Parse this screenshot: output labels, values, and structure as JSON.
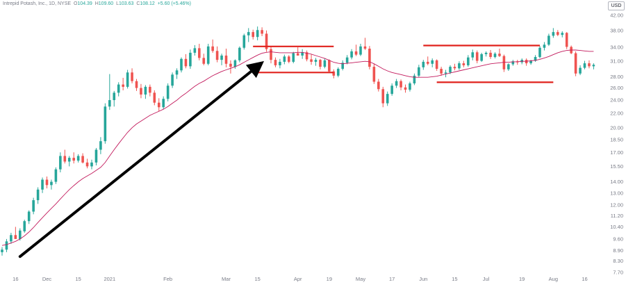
{
  "header": {
    "symbol": "Intrepid Potash, Inc., 1D, NYSE",
    "o_label": "O",
    "o_value": "104.39",
    "h_label": "H",
    "h_value": "109.60",
    "l_label": "L",
    "l_value": "103.63",
    "c_label": "C",
    "c_value": "108.12",
    "change": "+5.60 (+5.46%)",
    "currency": "USD"
  },
  "colors": {
    "up": "#26a69a",
    "down": "#ef5350",
    "ma": "#c2185b",
    "levels": "#e0201b",
    "arrow": "#000000",
    "axis_text": "#787b86"
  },
  "chart_data": {
    "type": "candlestick",
    "price_scale": "log",
    "y_ticks": [
      7.7,
      8.3,
      8.9,
      9.6,
      10.4,
      11.2,
      12.0,
      13.0,
      14.0,
      15.5,
      17.0,
      18.5,
      20.0,
      22.0,
      24.0,
      26.0,
      28.0,
      31.0,
      34.0,
      38.0,
      42.0
    ],
    "y_tick_labels": [
      "7.70",
      "8.30",
      "8.90",
      "9.60",
      "10.40",
      "11.20",
      "12.00",
      "13.00",
      "14.00",
      "15.50",
      "17.00",
      "18.50",
      "20.00",
      "22.00",
      "24.00",
      "26.00",
      "28.00",
      "31.00",
      "34.00",
      "38.00",
      "42.00"
    ],
    "x_labels": [
      {
        "i": 3,
        "label": "16"
      },
      {
        "i": 10,
        "label": "Dec"
      },
      {
        "i": 17,
        "label": "15"
      },
      {
        "i": 24,
        "label": "2021"
      },
      {
        "i": 37,
        "label": "Feb"
      },
      {
        "i": 50,
        "label": "Mar"
      },
      {
        "i": 57,
        "label": "15"
      },
      {
        "i": 66,
        "label": "Apr"
      },
      {
        "i": 73,
        "label": "19"
      },
      {
        "i": 80,
        "label": "May"
      },
      {
        "i": 87,
        "label": "17"
      },
      {
        "i": 94,
        "label": "Jun"
      },
      {
        "i": 101,
        "label": "15"
      },
      {
        "i": 108,
        "label": "Jul"
      },
      {
        "i": 116,
        "label": "19"
      },
      {
        "i": 123,
        "label": "Aug"
      },
      {
        "i": 130,
        "label": "16"
      }
    ],
    "ohlc": [
      [
        8.8,
        9.1,
        8.6,
        8.95
      ],
      [
        8.95,
        9.6,
        8.8,
        9.45
      ],
      [
        9.45,
        10.0,
        9.3,
        9.85
      ],
      [
        9.85,
        10.4,
        9.6,
        9.6
      ],
      [
        9.6,
        10.3,
        9.5,
        10.15
      ],
      [
        10.1,
        10.9,
        10.0,
        10.8
      ],
      [
        10.8,
        11.6,
        10.6,
        11.5
      ],
      [
        11.5,
        12.6,
        11.3,
        12.4
      ],
      [
        12.4,
        13.5,
        12.1,
        13.3
      ],
      [
        13.3,
        14.4,
        13.0,
        14.2
      ],
      [
        14.2,
        14.5,
        13.4,
        13.7
      ],
      [
        13.7,
        14.2,
        13.3,
        14.0
      ],
      [
        14.0,
        15.4,
        13.8,
        15.2
      ],
      [
        15.2,
        17.0,
        14.9,
        16.6
      ],
      [
        16.6,
        17.3,
        15.8,
        16.0
      ],
      [
        16.0,
        16.6,
        15.5,
        16.4
      ],
      [
        16.4,
        17.0,
        15.8,
        16.1
      ],
      [
        16.1,
        16.8,
        15.9,
        16.6
      ],
      [
        16.6,
        16.9,
        15.8,
        15.9
      ],
      [
        15.9,
        16.3,
        15.3,
        15.5
      ],
      [
        15.5,
        16.2,
        15.2,
        15.9
      ],
      [
        15.9,
        17.5,
        15.6,
        17.3
      ],
      [
        17.3,
        18.8,
        16.8,
        18.3
      ],
      [
        18.3,
        23.5,
        18.0,
        23.0
      ],
      [
        23.0,
        28.5,
        22.5,
        24.0
      ],
      [
        24.0,
        25.5,
        23.0,
        25.2
      ],
      [
        25.2,
        27.0,
        24.6,
        26.6
      ],
      [
        26.6,
        27.8,
        25.6,
        26.2
      ],
      [
        26.2,
        29.3,
        25.9,
        28.8
      ],
      [
        28.8,
        29.6,
        26.8,
        27.2
      ],
      [
        27.2,
        27.6,
        25.5,
        26.0
      ],
      [
        26.0,
        26.7,
        24.3,
        24.9
      ],
      [
        24.9,
        26.5,
        24.2,
        26.2
      ],
      [
        26.2,
        26.6,
        24.6,
        25.2
      ],
      [
        25.2,
        25.6,
        23.2,
        23.6
      ],
      [
        23.6,
        24.3,
        22.3,
        22.9
      ],
      [
        22.9,
        24.6,
        22.6,
        24.2
      ],
      [
        24.2,
        26.8,
        23.8,
        26.4
      ],
      [
        26.4,
        28.8,
        26.0,
        28.4
      ],
      [
        28.4,
        29.6,
        27.6,
        29.2
      ],
      [
        29.2,
        31.8,
        28.8,
        31.5
      ],
      [
        31.5,
        32.5,
        29.6,
        30.0
      ],
      [
        30.0,
        33.5,
        29.5,
        32.8
      ],
      [
        32.8,
        34.5,
        32.2,
        33.8
      ],
      [
        33.8,
        34.8,
        31.2,
        31.7
      ],
      [
        31.7,
        32.6,
        30.2,
        30.5
      ],
      [
        30.5,
        34.8,
        30.2,
        34.2
      ],
      [
        34.2,
        35.8,
        32.8,
        33.2
      ],
      [
        33.2,
        34.2,
        30.8,
        31.3
      ],
      [
        31.3,
        32.6,
        30.2,
        32.2
      ],
      [
        32.2,
        33.7,
        29.8,
        30.5
      ],
      [
        30.5,
        31.2,
        28.6,
        29.9
      ],
      [
        29.9,
        31.4,
        29.5,
        31.2
      ],
      [
        31.2,
        34.2,
        30.8,
        33.9
      ],
      [
        33.9,
        37.2,
        33.5,
        36.8
      ],
      [
        36.8,
        38.6,
        35.2,
        37.6
      ],
      [
        37.6,
        38.2,
        35.8,
        36.4
      ],
      [
        36.4,
        39.0,
        35.6,
        38.1
      ],
      [
        38.1,
        38.8,
        36.6,
        37.2
      ],
      [
        37.2,
        38.0,
        33.0,
        33.6
      ],
      [
        33.6,
        34.2,
        30.6,
        31.3
      ],
      [
        31.3,
        31.8,
        29.8,
        30.2
      ],
      [
        30.2,
        31.5,
        29.6,
        30.9
      ],
      [
        30.9,
        32.4,
        30.4,
        32.0
      ],
      [
        32.0,
        32.3,
        30.6,
        30.9
      ],
      [
        30.9,
        33.0,
        30.6,
        32.7
      ],
      [
        32.7,
        34.0,
        32.2,
        32.2
      ],
      [
        32.2,
        33.6,
        31.5,
        32.9
      ],
      [
        32.9,
        33.3,
        31.0,
        31.4
      ],
      [
        31.4,
        32.4,
        30.3,
        30.9
      ],
      [
        30.9,
        31.7,
        30.1,
        31.3
      ],
      [
        31.3,
        31.5,
        29.4,
        29.9
      ],
      [
        29.9,
        31.6,
        29.6,
        31.2
      ],
      [
        31.2,
        31.4,
        28.7,
        29.0
      ],
      [
        29.0,
        29.4,
        27.7,
        28.2
      ],
      [
        28.2,
        29.8,
        27.9,
        29.5
      ],
      [
        29.5,
        31.2,
        29.2,
        30.7
      ],
      [
        30.7,
        32.3,
        30.4,
        31.8
      ],
      [
        31.8,
        33.6,
        31.4,
        33.1
      ],
      [
        33.1,
        34.6,
        32.1,
        32.4
      ],
      [
        32.4,
        34.8,
        32.1,
        34.2
      ],
      [
        34.2,
        36.2,
        33.4,
        33.7
      ],
      [
        33.7,
        34.3,
        29.4,
        29.9
      ],
      [
        29.9,
        30.5,
        26.7,
        27.1
      ],
      [
        27.1,
        27.6,
        25.4,
        25.8
      ],
      [
        25.8,
        26.2,
        22.9,
        23.5
      ],
      [
        23.5,
        25.4,
        23.1,
        25.0
      ],
      [
        25.0,
        26.8,
        24.7,
        26.4
      ],
      [
        26.4,
        27.6,
        26.0,
        27.2
      ],
      [
        27.2,
        27.5,
        25.6,
        26.1
      ],
      [
        26.1,
        26.6,
        25.2,
        25.7
      ],
      [
        25.7,
        27.1,
        25.4,
        26.8
      ],
      [
        26.8,
        28.6,
        26.5,
        28.2
      ],
      [
        28.2,
        30.3,
        27.9,
        29.8
      ],
      [
        29.8,
        31.3,
        29.3,
        30.9
      ],
      [
        30.9,
        32.0,
        30.2,
        30.5
      ],
      [
        30.5,
        31.6,
        29.8,
        31.2
      ],
      [
        31.2,
        31.4,
        29.1,
        29.5
      ],
      [
        29.5,
        29.9,
        28.2,
        28.6
      ],
      [
        28.6,
        29.3,
        27.9,
        28.8
      ],
      [
        28.8,
        30.2,
        28.5,
        29.9
      ],
      [
        29.9,
        30.5,
        29.2,
        29.6
      ],
      [
        29.6,
        31.0,
        29.3,
        30.6
      ],
      [
        30.6,
        31.1,
        29.8,
        30.2
      ],
      [
        30.2,
        32.3,
        29.9,
        31.8
      ],
      [
        31.8,
        33.5,
        31.2,
        32.9
      ],
      [
        32.9,
        33.3,
        30.6,
        31.1
      ],
      [
        31.1,
        32.8,
        30.9,
        32.5
      ],
      [
        32.5,
        33.1,
        32.0,
        32.8
      ],
      [
        32.8,
        33.4,
        31.5,
        31.9
      ],
      [
        31.9,
        32.9,
        31.6,
        32.6
      ],
      [
        32.6,
        33.7,
        31.9,
        32.1
      ],
      [
        32.1,
        32.4,
        28.9,
        29.4
      ],
      [
        29.4,
        30.6,
        29.1,
        30.4
      ],
      [
        30.4,
        31.3,
        30.1,
        31.0
      ],
      [
        31.0,
        31.3,
        30.3,
        30.8
      ],
      [
        30.8,
        31.6,
        30.4,
        31.3
      ],
      [
        31.3,
        31.6,
        30.1,
        30.6
      ],
      [
        30.6,
        31.3,
        30.3,
        31.1
      ],
      [
        31.1,
        32.3,
        30.9,
        31.9
      ],
      [
        31.9,
        34.3,
        31.6,
        33.9
      ],
      [
        33.9,
        35.2,
        33.3,
        34.6
      ],
      [
        34.6,
        37.2,
        34.3,
        36.7
      ],
      [
        36.7,
        38.6,
        36.2,
        37.6
      ],
      [
        37.6,
        38.1,
        36.6,
        36.9
      ],
      [
        36.9,
        37.8,
        36.3,
        37.4
      ],
      [
        37.4,
        37.6,
        33.6,
        34.1
      ],
      [
        34.1,
        34.4,
        32.5,
        32.7
      ],
      [
        32.7,
        33.1,
        28.1,
        28.6
      ],
      [
        28.6,
        30.2,
        28.3,
        29.7
      ],
      [
        29.7,
        31.1,
        29.4,
        30.6
      ],
      [
        30.6,
        31.2,
        29.6,
        30.0
      ],
      [
        30.0,
        30.6,
        29.4,
        30.3
      ]
    ],
    "moving_average": [
      9.2,
      9.25,
      9.35,
      9.45,
      9.6,
      9.8,
      10.05,
      10.35,
      10.7,
      11.05,
      11.4,
      11.75,
      12.1,
      12.5,
      12.9,
      13.3,
      13.65,
      14.0,
      14.3,
      14.55,
      14.8,
      15.1,
      15.4,
      15.9,
      16.6,
      17.3,
      18.0,
      18.7,
      19.4,
      20.0,
      20.5,
      20.9,
      21.3,
      21.7,
      22.0,
      22.3,
      22.6,
      23.0,
      23.5,
      24.0,
      24.6,
      25.1,
      25.7,
      26.3,
      26.8,
      27.2,
      27.7,
      28.2,
      28.6,
      29.0,
      29.3,
      29.6,
      29.9,
      30.3,
      30.8,
      31.3,
      31.8,
      32.3,
      32.7,
      32.9,
      33.0,
      32.9,
      32.8,
      32.8,
      32.8,
      32.8,
      32.9,
      32.9,
      32.7,
      32.5,
      32.2,
      31.9,
      31.6,
      31.2,
      30.8,
      30.6,
      30.5,
      30.6,
      30.7,
      30.8,
      30.9,
      31.0,
      30.9,
      30.5,
      30.0,
      29.5,
      29.1,
      28.8,
      28.6,
      28.4,
      28.2,
      28.0,
      27.9,
      27.9,
      27.9,
      27.9,
      28.0,
      28.1,
      28.3,
      28.5,
      28.7,
      28.9,
      29.1,
      29.3,
      29.5,
      29.7,
      29.9,
      30.1,
      30.3,
      30.5,
      30.6,
      30.7,
      30.8,
      30.8,
      30.9,
      30.9,
      31.0,
      31.0,
      31.1,
      31.2,
      31.4,
      31.7,
      32.0,
      32.4,
      32.8,
      33.1,
      33.3,
      33.4,
      33.4,
      33.3,
      33.2,
      33.1,
      33.1
    ],
    "annotations": {
      "resistance_1": {
        "from_i": 56,
        "to_i": 74,
        "price": 34.2
      },
      "support_1": {
        "from_i": 56,
        "to_i": 74,
        "price": 28.8
      },
      "resistance_2": {
        "from_i": 94,
        "to_i": 120,
        "price": 34.4
      },
      "support_2": {
        "from_i": 97,
        "to_i": 123,
        "price": 27.0
      },
      "trend_arrow": {
        "from_i": 4,
        "from_price": 8.55,
        "to_i": 57,
        "to_price": 30.0
      }
    }
  }
}
